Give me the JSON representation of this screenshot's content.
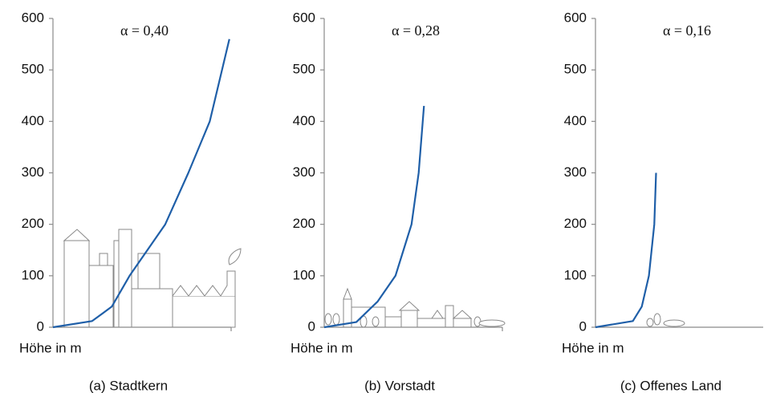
{
  "chart_data": [
    {
      "type": "line",
      "title": "α = 0,40",
      "xlabel": "Höhe in m",
      "caption": "(a) Stadtkern",
      "xlim": [
        0,
        1
      ],
      "ylim": [
        0,
        600
      ],
      "yticks": [
        0,
        100,
        200,
        300,
        400,
        500,
        600
      ],
      "series": [
        {
          "color": "#1f5fa8",
          "x": [
            0,
            0.22,
            0.33,
            0.43,
            0.63,
            0.76,
            0.88,
            0.99
          ],
          "values": [
            0,
            12,
            40,
            100,
            200,
            300,
            400,
            560
          ]
        }
      ]
    },
    {
      "type": "line",
      "title": "α = 0,28",
      "xlabel": "Höhe in m",
      "caption": "(b) Vorstadt",
      "xlim": [
        0,
        1
      ],
      "ylim": [
        0,
        600
      ],
      "yticks": [
        0,
        100,
        200,
        300,
        400,
        500,
        600
      ],
      "series": [
        {
          "color": "#1f5fa8",
          "x": [
            0,
            0.18,
            0.3,
            0.4,
            0.49,
            0.53,
            0.56
          ],
          "values": [
            0,
            10,
            50,
            100,
            200,
            300,
            430
          ]
        }
      ]
    },
    {
      "type": "line",
      "title": "α = 0,16",
      "xlabel": "Höhe in m",
      "caption": "(c) Offenes Land",
      "xlim": [
        0,
        1
      ],
      "ylim": [
        0,
        600
      ],
      "yticks": [
        0,
        100,
        200,
        300,
        400,
        500,
        600
      ],
      "series": [
        {
          "color": "#1f5fa8",
          "x": [
            0,
            0.21,
            0.26,
            0.3,
            0.33,
            0.34
          ],
          "values": [
            0,
            12,
            40,
            100,
            200,
            300
          ]
        }
      ]
    }
  ]
}
